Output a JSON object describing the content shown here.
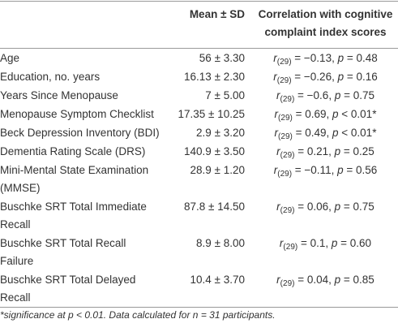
{
  "table": {
    "header": {
      "label": "",
      "mean": "Mean ± SD",
      "correlation": [
        "Correlation with cognitive",
        "complaint index scores"
      ]
    },
    "rows": [
      {
        "label": [
          "Age"
        ],
        "mean": "56 ± 3.30",
        "correlation": {
          "r": "r",
          "sub": "(29)",
          "value": " = −0.13, ",
          "p": "p",
          "pvalue": " = 0.48"
        }
      },
      {
        "label": [
          "Education, no. years"
        ],
        "mean": "16.13 ± 2.30",
        "correlation": {
          "r": "r",
          "sub": "(29)",
          "value": " = −0.26, ",
          "p": "p",
          "pvalue": " = 0.16"
        }
      },
      {
        "label": [
          "Years Since Menopause"
        ],
        "mean": "7 ± 5.00",
        "correlation": {
          "r": "r",
          "sub": "(29)",
          "value": " = −0.6, ",
          "p": "p",
          "pvalue": " = 0.75"
        }
      },
      {
        "label": [
          "Menopause Symptom Checklist"
        ],
        "mean": "17.35 ± 10.25",
        "correlation": {
          "r": "r",
          "sub": "(29)",
          "value": " = 0.69, ",
          "p": "p",
          "pvalue": " < 0.01*"
        }
      },
      {
        "label": [
          "Beck Depression Inventory (BDI)"
        ],
        "mean": "2.9 ± 3.20",
        "correlation": {
          "r": "r",
          "sub": "(29)",
          "value": " = 0.49, ",
          "p": "p",
          "pvalue": " < 0.01*"
        }
      },
      {
        "label": [
          "Dementia Rating Scale (DRS)"
        ],
        "mean": "140.9 ± 3.50",
        "correlation": {
          "r": "r",
          "sub": "(29)",
          "value": " = 0.21, ",
          "p": "p",
          "pvalue": " = 0.25"
        }
      },
      {
        "label": [
          "Mini-Mental State Examination",
          "(MMSE)"
        ],
        "mean": "28.9 ± 1.20",
        "correlation": {
          "r": "r",
          "sub": "(29)",
          "value": " = −0.11, ",
          "p": "p",
          "pvalue": " = 0.56"
        }
      },
      {
        "label": [
          "Buschke SRT Total Immediate",
          "Recall"
        ],
        "mean": "87.8 ± 14.50",
        "correlation": {
          "r": "r",
          "sub": "(29)",
          "value": " = 0.06, ",
          "p": "p",
          "pvalue": " = 0.75"
        }
      },
      {
        "label": [
          "Buschke SRT Total Recall",
          "Failure"
        ],
        "mean": "8.9 ± 8.00",
        "correlation": {
          "r": "r",
          "sub": "(29)",
          "value": " = 0.1, ",
          "p": "p",
          "pvalue": " = 0.60"
        }
      },
      {
        "label": [
          "Buschke SRT Total Delayed",
          "Recall"
        ],
        "mean": "10.4 ± 3.70",
        "correlation": {
          "r": "r",
          "sub": "(29)",
          "value": " = 0.04, ",
          "p": "p",
          "pvalue": " = 0.85"
        }
      }
    ],
    "footnote": "*significance at p < 0.01. Data calculated for n = 31 participants."
  }
}
